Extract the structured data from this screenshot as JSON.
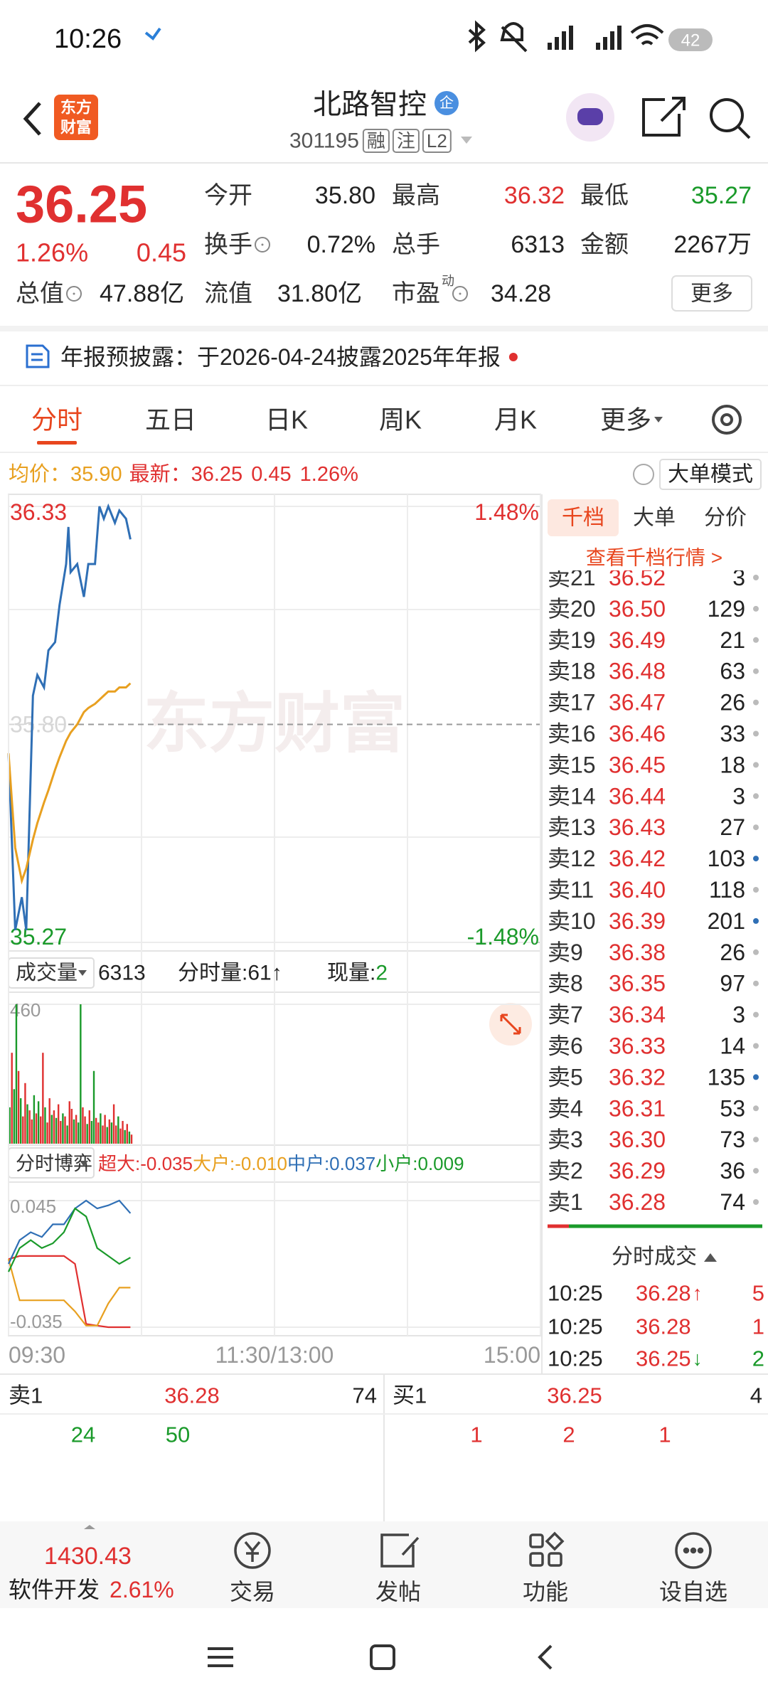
{
  "status_bar": {
    "time": "10:26",
    "battery": "42"
  },
  "header": {
    "logo": [
      "东方",
      "财富"
    ],
    "title": "北路智控",
    "badge": "企",
    "code": "301195",
    "tags": [
      "融",
      "注",
      "L2"
    ]
  },
  "quote": {
    "price": "36.25",
    "change_pct": "1.26%",
    "change": "0.45",
    "fields": [
      {
        "label": "今开",
        "value": "35.80",
        "color": "#222222"
      },
      {
        "label": "最高",
        "value": "36.32",
        "color": "#e03030"
      },
      {
        "label": "最低",
        "value": "35.27",
        "color": "#1a9a2a"
      },
      {
        "label": "换手",
        "value": "0.72%",
        "color": "#222222"
      },
      {
        "label": "总手",
        "value": "6313",
        "color": "#222222"
      },
      {
        "label": "金额",
        "value": "2267万",
        "color": "#222222"
      },
      {
        "label": "总值",
        "value": "47.88亿",
        "color": "#222222"
      },
      {
        "label": "流值",
        "value": "31.80亿",
        "color": "#222222"
      },
      {
        "label": "市盈",
        "superscript": "动",
        "value": "34.28",
        "color": "#222222"
      }
    ],
    "more": "更多"
  },
  "notice": "年报预披露：于2026-04-24披露2025年年报",
  "tabs": [
    "分时",
    "五日",
    "日K",
    "周K",
    "月K",
    "更多"
  ],
  "info_bar": {
    "avg_label": "均价：",
    "avg": "35.90",
    "latest_label": "最新：",
    "latest": "36.25",
    "change": "0.45",
    "change_pct": "1.26%",
    "mode": "大单模式"
  },
  "watermark": "东方财富",
  "chart_data": [
    {
      "type": "line",
      "x": [
        0,
        3,
        6,
        8,
        11,
        13,
        16,
        18,
        21,
        23,
        26,
        27,
        28,
        31,
        34,
        36,
        39,
        41,
        43,
        45,
        48,
        50,
        53,
        55
      ],
      "xlim": [
        0,
        240
      ],
      "ylim": [
        35.27,
        36.33
      ],
      "yticks": [
        36.33,
        {
          "value": 35.8,
          "label": "35.80"
        },
        35.27
      ],
      "y2lim": [
        -1.48,
        1.48
      ],
      "y2ticks": [
        {
          "value": 1.48,
          "label": "1.48%"
        },
        {
          "value": -1.48,
          "label": "-1.48%"
        }
      ],
      "series": [
        {
          "color": "#2f6fb5",
          "values": [
            35.73,
            35.3,
            35.38,
            35.3,
            35.87,
            35.92,
            35.89,
            35.98,
            36.0,
            36.09,
            36.19,
            36.28,
            36.17,
            36.19,
            36.11,
            36.19,
            36.19,
            36.33,
            36.3,
            36.33,
            36.29,
            36.32,
            36.3,
            36.25
          ]
        },
        {
          "color": "#e8a020",
          "values": [
            35.73,
            35.5,
            35.42,
            35.45,
            35.52,
            35.56,
            35.61,
            35.64,
            35.69,
            35.72,
            35.76,
            35.77,
            35.78,
            35.8,
            35.83,
            35.84,
            35.85,
            35.86,
            35.87,
            35.88,
            35.88,
            35.89,
            35.89,
            35.9
          ]
        }
      ]
    },
    {
      "type": "bar",
      "label": "成交量",
      "total": "6313",
      "minute_label": "分时量:",
      "minute": "61↑",
      "current_label": "现量:",
      "current": "2",
      "xlim": [
        0,
        240
      ],
      "ylim": [
        0,
        460
      ],
      "yticks": [
        460
      ],
      "up_color": "#e03030",
      "down_color": "#1a9a2a",
      "x": [
        0,
        1,
        2,
        3,
        4,
        5,
        6,
        7,
        8,
        9,
        10,
        11,
        12,
        13,
        14,
        15,
        16,
        17,
        18,
        19,
        20,
        21,
        22,
        23,
        24,
        25,
        26,
        27,
        28,
        29,
        30,
        31,
        32,
        33,
        34,
        35,
        36,
        37,
        38,
        39,
        40,
        41,
        42,
        43,
        44,
        45,
        46,
        47,
        48,
        49,
        50,
        51,
        52,
        53,
        54,
        55
      ],
      "values": [
        120,
        300,
        180,
        460,
        240,
        150,
        90,
        200,
        130,
        110,
        80,
        160,
        100,
        140,
        90,
        300,
        120,
        70,
        150,
        95,
        110,
        85,
        130,
        75,
        100,
        90,
        60,
        140,
        115,
        80,
        95,
        70,
        460,
        120,
        90,
        65,
        110,
        75,
        240,
        85,
        70,
        100,
        60,
        95,
        55,
        80,
        70,
        130,
        60,
        90,
        50,
        75,
        45,
        65,
        40,
        30
      ],
      "up": [
        false,
        true,
        false,
        false,
        true,
        false,
        true,
        true,
        false,
        true,
        true,
        false,
        true,
        false,
        true,
        true,
        false,
        true,
        true,
        false,
        true,
        false,
        true,
        true,
        false,
        true,
        false,
        true,
        true,
        false,
        true,
        false,
        false,
        true,
        true,
        false,
        true,
        false,
        false,
        true,
        true,
        false,
        true,
        true,
        false,
        true,
        false,
        true,
        true,
        false,
        true,
        true,
        false,
        true,
        false,
        true
      ]
    },
    {
      "type": "line",
      "label": "分时博弈",
      "x": [
        0,
        5,
        10,
        15,
        20,
        25,
        30,
        35,
        40,
        45,
        50,
        55
      ],
      "xlim": [
        0,
        240
      ],
      "xticks": [
        {
          "value": 0,
          "label": "09:30"
        },
        {
          "value": 120,
          "label": "11:30/13:00"
        },
        {
          "value": 240,
          "label": "15:00"
        }
      ],
      "ylim": [
        -0.035,
        0.045
      ],
      "yticks": [
        0.045,
        -0.035
      ],
      "series": [
        {
          "name": "超大:",
          "latest": "-0.035",
          "color": "#e03030",
          "values": [
            0.008,
            0.01,
            0.01,
            0.01,
            0.01,
            0.01,
            0.005,
            -0.033,
            -0.034,
            -0.035,
            -0.035,
            -0.035
          ]
        },
        {
          "name": "大户:",
          "latest": "-0.010",
          "color": "#e8a020",
          "values": [
            0.008,
            -0.018,
            -0.018,
            -0.018,
            -0.018,
            -0.018,
            -0.025,
            -0.034,
            -0.034,
            -0.02,
            -0.01,
            -0.01
          ]
        },
        {
          "name": "中户:",
          "latest": "0.037",
          "color": "#2f6fb5",
          "values": [
            0.005,
            0.02,
            0.025,
            0.022,
            0.03,
            0.03,
            0.04,
            0.045,
            0.04,
            0.042,
            0.045,
            0.037
          ]
        },
        {
          "name": "小户:",
          "latest": "0.009",
          "color": "#1a9a2a",
          "values": [
            0.0,
            0.015,
            0.02,
            0.015,
            0.018,
            0.025,
            0.04,
            0.035,
            0.015,
            0.01,
            0.005,
            0.009
          ]
        }
      ]
    }
  ],
  "order_book": {
    "tabs": [
      "千档",
      "大单",
      "分价"
    ],
    "link": "查看千档行情 >",
    "asks": [
      {
        "label": "卖21",
        "price": "36.52",
        "volume": "3",
        "large": false
      },
      {
        "label": "卖20",
        "price": "36.50",
        "volume": "129",
        "large": false
      },
      {
        "label": "卖19",
        "price": "36.49",
        "volume": "21",
        "large": false
      },
      {
        "label": "卖18",
        "price": "36.48",
        "volume": "63",
        "large": false
      },
      {
        "label": "卖17",
        "price": "36.47",
        "volume": "26",
        "large": false
      },
      {
        "label": "卖16",
        "price": "36.46",
        "volume": "33",
        "large": false
      },
      {
        "label": "卖15",
        "price": "36.45",
        "volume": "18",
        "large": false
      },
      {
        "label": "卖14",
        "price": "36.44",
        "volume": "3",
        "large": false
      },
      {
        "label": "卖13",
        "price": "36.43",
        "volume": "27",
        "large": false
      },
      {
        "label": "卖12",
        "price": "36.42",
        "volume": "103",
        "large": true
      },
      {
        "label": "卖11",
        "price": "36.40",
        "volume": "118",
        "large": false
      },
      {
        "label": "卖10",
        "price": "36.39",
        "volume": "201",
        "large": true
      },
      {
        "label": "卖9",
        "price": "36.38",
        "volume": "26",
        "large": false
      },
      {
        "label": "卖8",
        "price": "36.35",
        "volume": "97",
        "large": false
      },
      {
        "label": "卖7",
        "price": "36.34",
        "volume": "3",
        "large": false
      },
      {
        "label": "卖6",
        "price": "36.33",
        "volume": "14",
        "large": false
      },
      {
        "label": "卖5",
        "price": "36.32",
        "volume": "135",
        "large": true
      },
      {
        "label": "卖4",
        "price": "36.31",
        "volume": "53",
        "large": false
      },
      {
        "label": "卖3",
        "price": "36.30",
        "volume": "73",
        "large": false
      },
      {
        "label": "卖2",
        "price": "36.29",
        "volume": "36",
        "large": false
      },
      {
        "label": "卖1",
        "price": "36.28",
        "volume": "74",
        "large": false
      }
    ],
    "trades_title": "分时成交",
    "trades": [
      {
        "time": "10:25",
        "price": "36.28",
        "arrow": "↑",
        "arrow_color": "#e03030",
        "volume": "5",
        "color": "#e03030"
      },
      {
        "time": "10:25",
        "price": "36.28",
        "volume": "1",
        "color": "#e03030"
      },
      {
        "time": "10:25",
        "price": "36.25",
        "arrow": "↓",
        "arrow_color": "#1a9a2a",
        "volume": "2",
        "color": "#1a9a2a"
      }
    ]
  },
  "bottom_quote": {
    "sell": {
      "label": "卖1",
      "price": "36.28",
      "volume": "74",
      "queue": [
        "24",
        "50"
      ]
    },
    "buy": {
      "label": "买1",
      "price": "36.25",
      "volume": "4",
      "queue": [
        "1",
        "2",
        "1"
      ]
    }
  },
  "bottom_nav": {
    "index": {
      "value": "1430.43",
      "name": "软件开发",
      "change": "2.61%"
    },
    "buttons": [
      "交易",
      "发帖",
      "功能",
      "设自选"
    ]
  }
}
